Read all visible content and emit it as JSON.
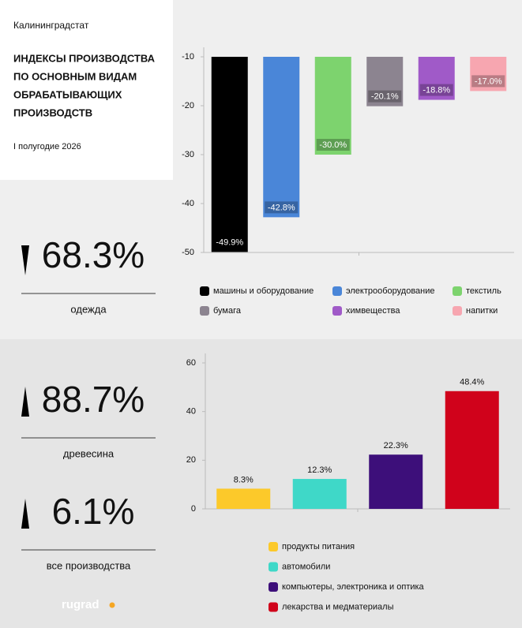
{
  "header": {
    "source": "Калининградстат",
    "title": [
      "ИНДЕКСЫ ПРОИЗВОДСТВА",
      "ПО ОСНОВНЫМ ВИДАМ",
      "ОБРАБАТЫВАЮЩИХ",
      "ПРОИЗВОДСТВ"
    ],
    "period": "I полугодие 2026"
  },
  "kpis": [
    {
      "value": "68.3%",
      "label": "одежда",
      "direction": "down"
    },
    {
      "value": "88.7%",
      "label": "древесина",
      "direction": "up"
    },
    {
      "value": "6.1%",
      "label": "все производства",
      "direction": "up"
    }
  ],
  "footer": {
    "logo": "rugrad"
  },
  "chart_data": [
    {
      "type": "bar",
      "categories": [
        "машины и оборудование",
        "электрооборудование",
        "текстиль",
        "бумага",
        "химвещества",
        "напитки"
      ],
      "values": [
        -49.9,
        -42.8,
        -30.0,
        -20.1,
        -18.8,
        -17.0
      ],
      "value_labels": [
        "-49.9%",
        "-42.8%",
        "-30.0%",
        "-20.1%",
        "-18.8%",
        "-17.0%"
      ],
      "colors": [
        "#000000",
        "#4a86d8",
        "#7dd36e",
        "#8c8490",
        "#a05ac8",
        "#f7a6b0"
      ],
      "ylim": [
        -50,
        -10
      ],
      "yticks": [
        -10,
        -20,
        -30,
        -40,
        -50
      ],
      "grid": false
    },
    {
      "type": "bar",
      "categories": [
        "продукты питания",
        "автомобили",
        "компьютеры, электроника и оптика",
        "лекарства и медматериалы"
      ],
      "values": [
        8.3,
        12.3,
        22.3,
        48.4
      ],
      "value_labels": [
        "8.3%",
        "12.3%",
        "22.3%",
        "48.4%"
      ],
      "colors": [
        "#fcc92a",
        "#3fd8c8",
        "#3d0f7a",
        "#d0021b"
      ],
      "ylim": [
        0,
        60
      ],
      "yticks": [
        0,
        20,
        40,
        60
      ],
      "grid": false
    }
  ]
}
